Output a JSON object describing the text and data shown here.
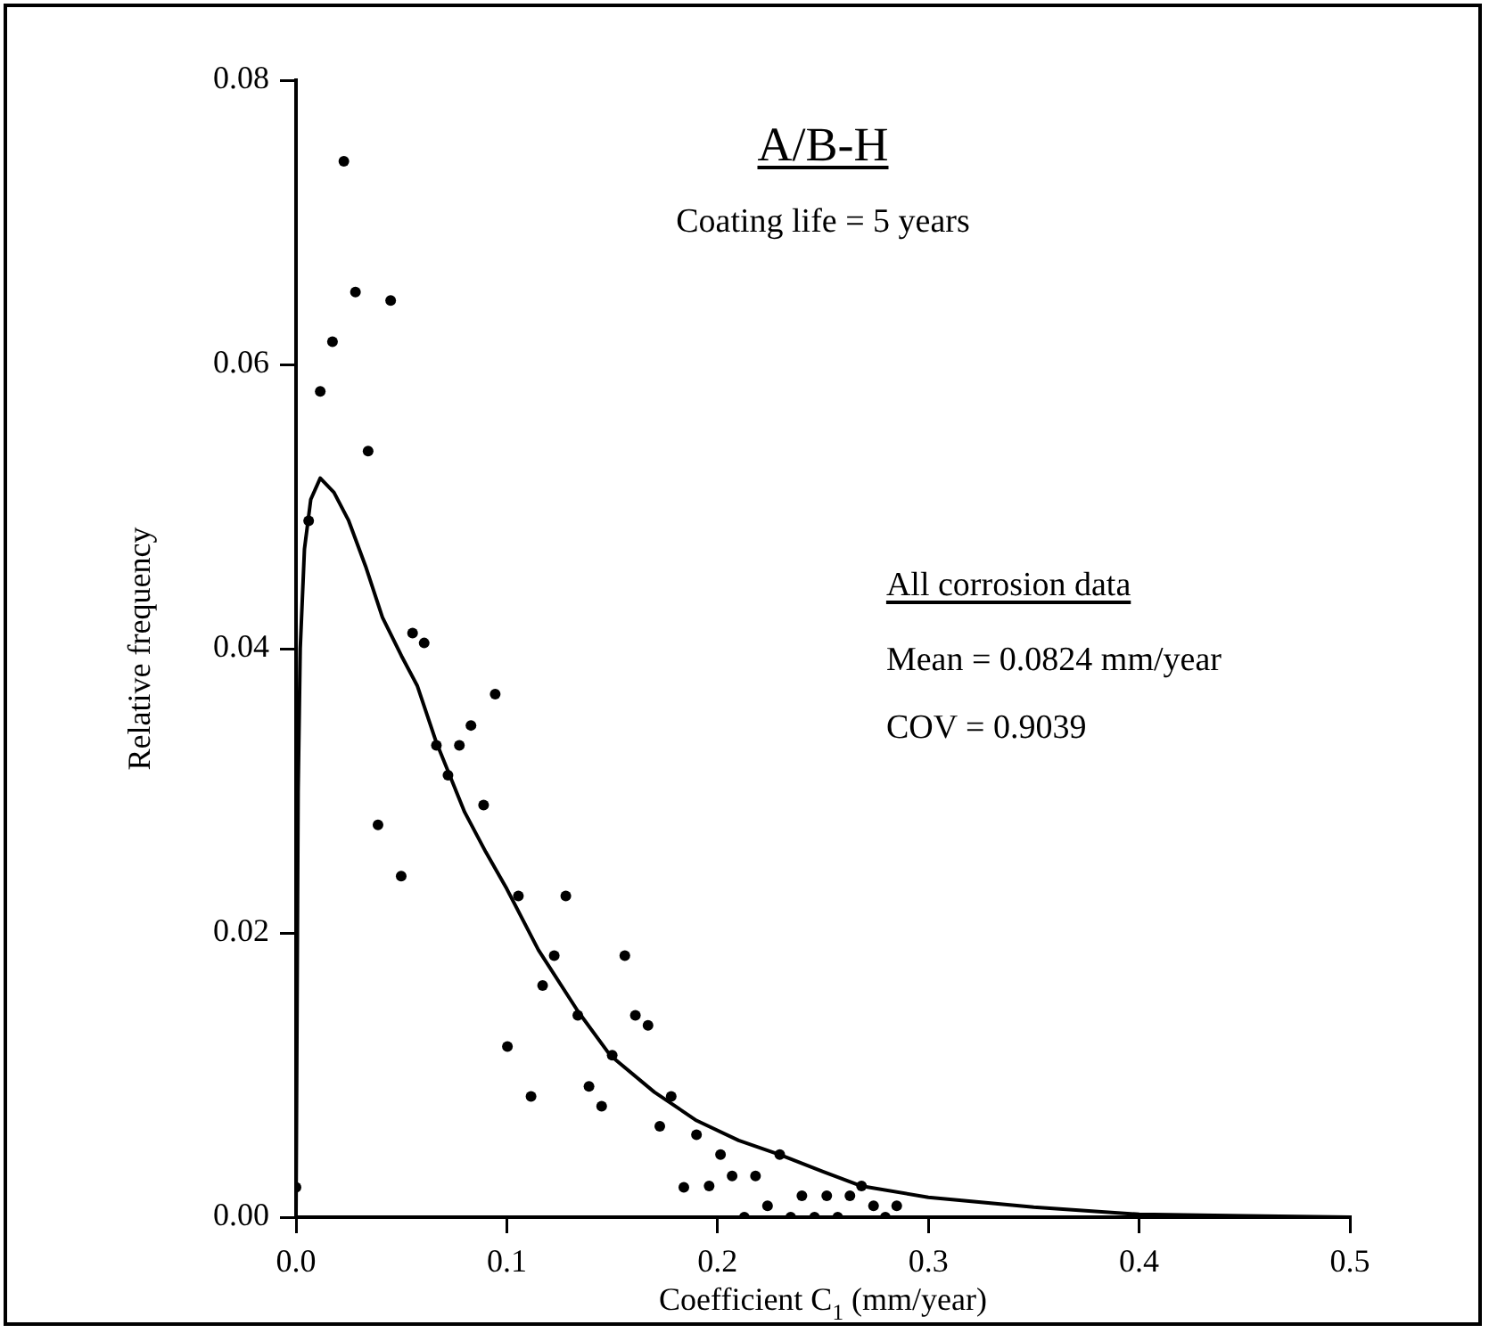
{
  "chart_data": {
    "type": "scatter",
    "title": "A/B-H",
    "xlabel": "Coefficient C$_{1}$ (mm/year)",
    "ylabel": "Relative frequency",
    "annotations": [
      "Coating life = 5 years",
      "All corrosion data",
      "Mean = 0.0824 mm/year",
      "COV = 0.9039"
    ],
    "xlim": [
      0,
      0.5
    ],
    "ylim": [
      0,
      0.08
    ],
    "xticks": [
      {
        "value": 0,
        "label": "0.0"
      },
      0.1,
      0.2,
      0.3,
      0.4,
      0.5
    ],
    "yticks": [
      {
        "value": 0,
        "label": "0.00"
      },
      {
        "value": 0.02,
        "label": "0.02"
      },
      {
        "value": 0.04,
        "label": "0.04"
      },
      {
        "value": 0.06,
        "label": "0.06"
      },
      {
        "value": 0.08,
        "label": "0.08"
      }
    ],
    "grid": false,
    "legend": false,
    "marker": "circle",
    "series": [
      {
        "type": "scatter",
        "color": "#000000",
        "x": [
          0,
          0.006,
          0.0115,
          0.0173,
          0.0227,
          0.0282,
          0.0342,
          0.0449,
          0.0389,
          0.0499,
          0.0553,
          0.0608,
          0.0666,
          0.0721,
          0.0775,
          0.083,
          0.089,
          0.0945,
          0.1003,
          0.1055,
          0.1115,
          0.117,
          0.1225,
          0.128,
          0.1337,
          0.139,
          0.145,
          0.15,
          0.156,
          0.161,
          0.167,
          0.1726,
          0.178,
          0.184,
          0.19,
          0.196,
          0.2014,
          0.2069,
          0.2127,
          0.218,
          0.2237,
          0.2295,
          0.2347,
          0.24,
          0.246,
          0.2518,
          0.257,
          0.2628,
          0.2683,
          0.274,
          0.2796,
          0.285
        ],
        "values": [
          0.0021,
          0.049,
          0.0581,
          0.0616,
          0.0743,
          0.0651,
          0.0539,
          0.0645,
          0.0276,
          0.024,
          0.0411,
          0.0404,
          0.0332,
          0.0311,
          0.0332,
          0.0346,
          0.029,
          0.0368,
          0.012,
          0.0226,
          0.0085,
          0.0163,
          0.0184,
          0.0226,
          0.0142,
          0.0092,
          0.0078,
          0.0114,
          0.0184,
          0.0142,
          0.0135,
          0.0064,
          0.0085,
          0.0021,
          0.0058,
          0.0022,
          0.0044,
          0.0029,
          0,
          0.0029,
          0.0008,
          0.0044,
          0,
          0.0015,
          0,
          0.0015,
          0,
          0.0015,
          0.0022,
          0.0008,
          0,
          0.0008
        ]
      },
      {
        "type": "line",
        "color": "#000000",
        "line_style": "solid",
        "marker": "none",
        "x": [
          0,
          0.001,
          0.002,
          0.004,
          0.007,
          0.0115,
          0.018,
          0.025,
          0.033,
          0.041,
          0.05,
          0.0575,
          0.0666,
          0.08,
          0.09,
          0.1,
          0.115,
          0.1337,
          0.149,
          0.17,
          0.19,
          0.21,
          0.2295,
          0.25,
          0.268,
          0.3,
          0.35,
          0.4,
          0.45,
          0.5
        ],
        "values": [
          0,
          0.03,
          0.04,
          0.047,
          0.0505,
          0.052,
          0.051,
          0.049,
          0.0458,
          0.0422,
          0.0395,
          0.0374,
          0.0334,
          0.0285,
          0.0257,
          0.0231,
          0.0188,
          0.0145,
          0.0114,
          0.0088,
          0.0068,
          0.0054,
          0.0044,
          0.0032,
          0.0022,
          0.0014,
          0.0007,
          0.0002,
          0.0001,
          0
        ]
      }
    ]
  }
}
